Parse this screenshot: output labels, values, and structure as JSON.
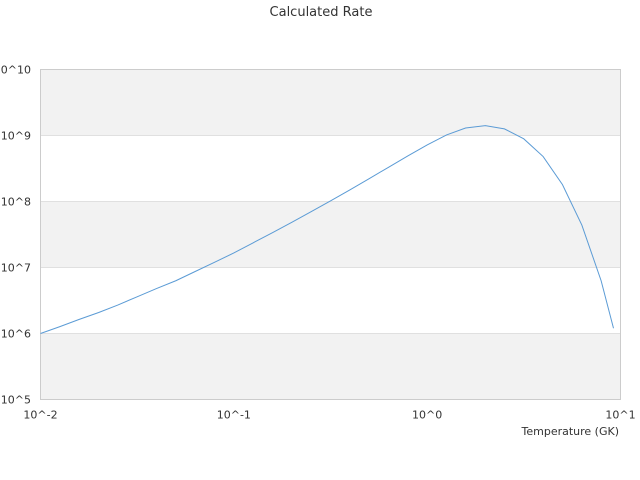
{
  "chart_data": {
    "type": "line",
    "title": "Calculated Rate",
    "xlabel": "Temperature (GK)",
    "ylabel": "",
    "x_scale": "log",
    "y_scale": "log",
    "xlim": [
      0.01,
      10
    ],
    "ylim": [
      100000,
      10000000000
    ],
    "x_ticks": [
      {
        "value": 0.01,
        "label": "10^-2"
      },
      {
        "value": 0.1,
        "label": "10^-1"
      },
      {
        "value": 1,
        "label": "10^0"
      },
      {
        "value": 10,
        "label": "10^1"
      }
    ],
    "y_ticks": [
      {
        "value": 100000,
        "label": "10^5"
      },
      {
        "value": 1000000,
        "label": "10^6"
      },
      {
        "value": 10000000,
        "label": "10^7"
      },
      {
        "value": 100000000,
        "label": "10^8"
      },
      {
        "value": 1000000000,
        "label": "10^9"
      },
      {
        "value": 10000000000,
        "label": "10^10"
      }
    ],
    "grid": true,
    "band_color": "#f2f2f2",
    "series": [
      {
        "color": "#5b9bd5",
        "x": [
          0.01,
          0.0126,
          0.0158,
          0.02,
          0.0251,
          0.0316,
          0.0398,
          0.0501,
          0.0631,
          0.0794,
          0.1,
          0.126,
          0.158,
          0.2,
          0.251,
          0.316,
          0.398,
          0.501,
          0.631,
          0.794,
          1.0,
          1.26,
          1.58,
          2.0,
          2.51,
          3.16,
          3.98,
          5.01,
          6.31,
          7.94,
          9.2
        ],
        "y": [
          1000000,
          1270000,
          1630000,
          2080000,
          2700000,
          3600000,
          4800000,
          6300000,
          8700000,
          12000000,
          16600000,
          23700000,
          33600000,
          48500000,
          70000000,
          102000000,
          150000000,
          222000000,
          330000000,
          490000000,
          720000000,
          1020000000,
          1300000000,
          1410000000,
          1260000000,
          890000000,
          480000000,
          180000000,
          44000000,
          6300000,
          1200000
        ]
      }
    ]
  }
}
